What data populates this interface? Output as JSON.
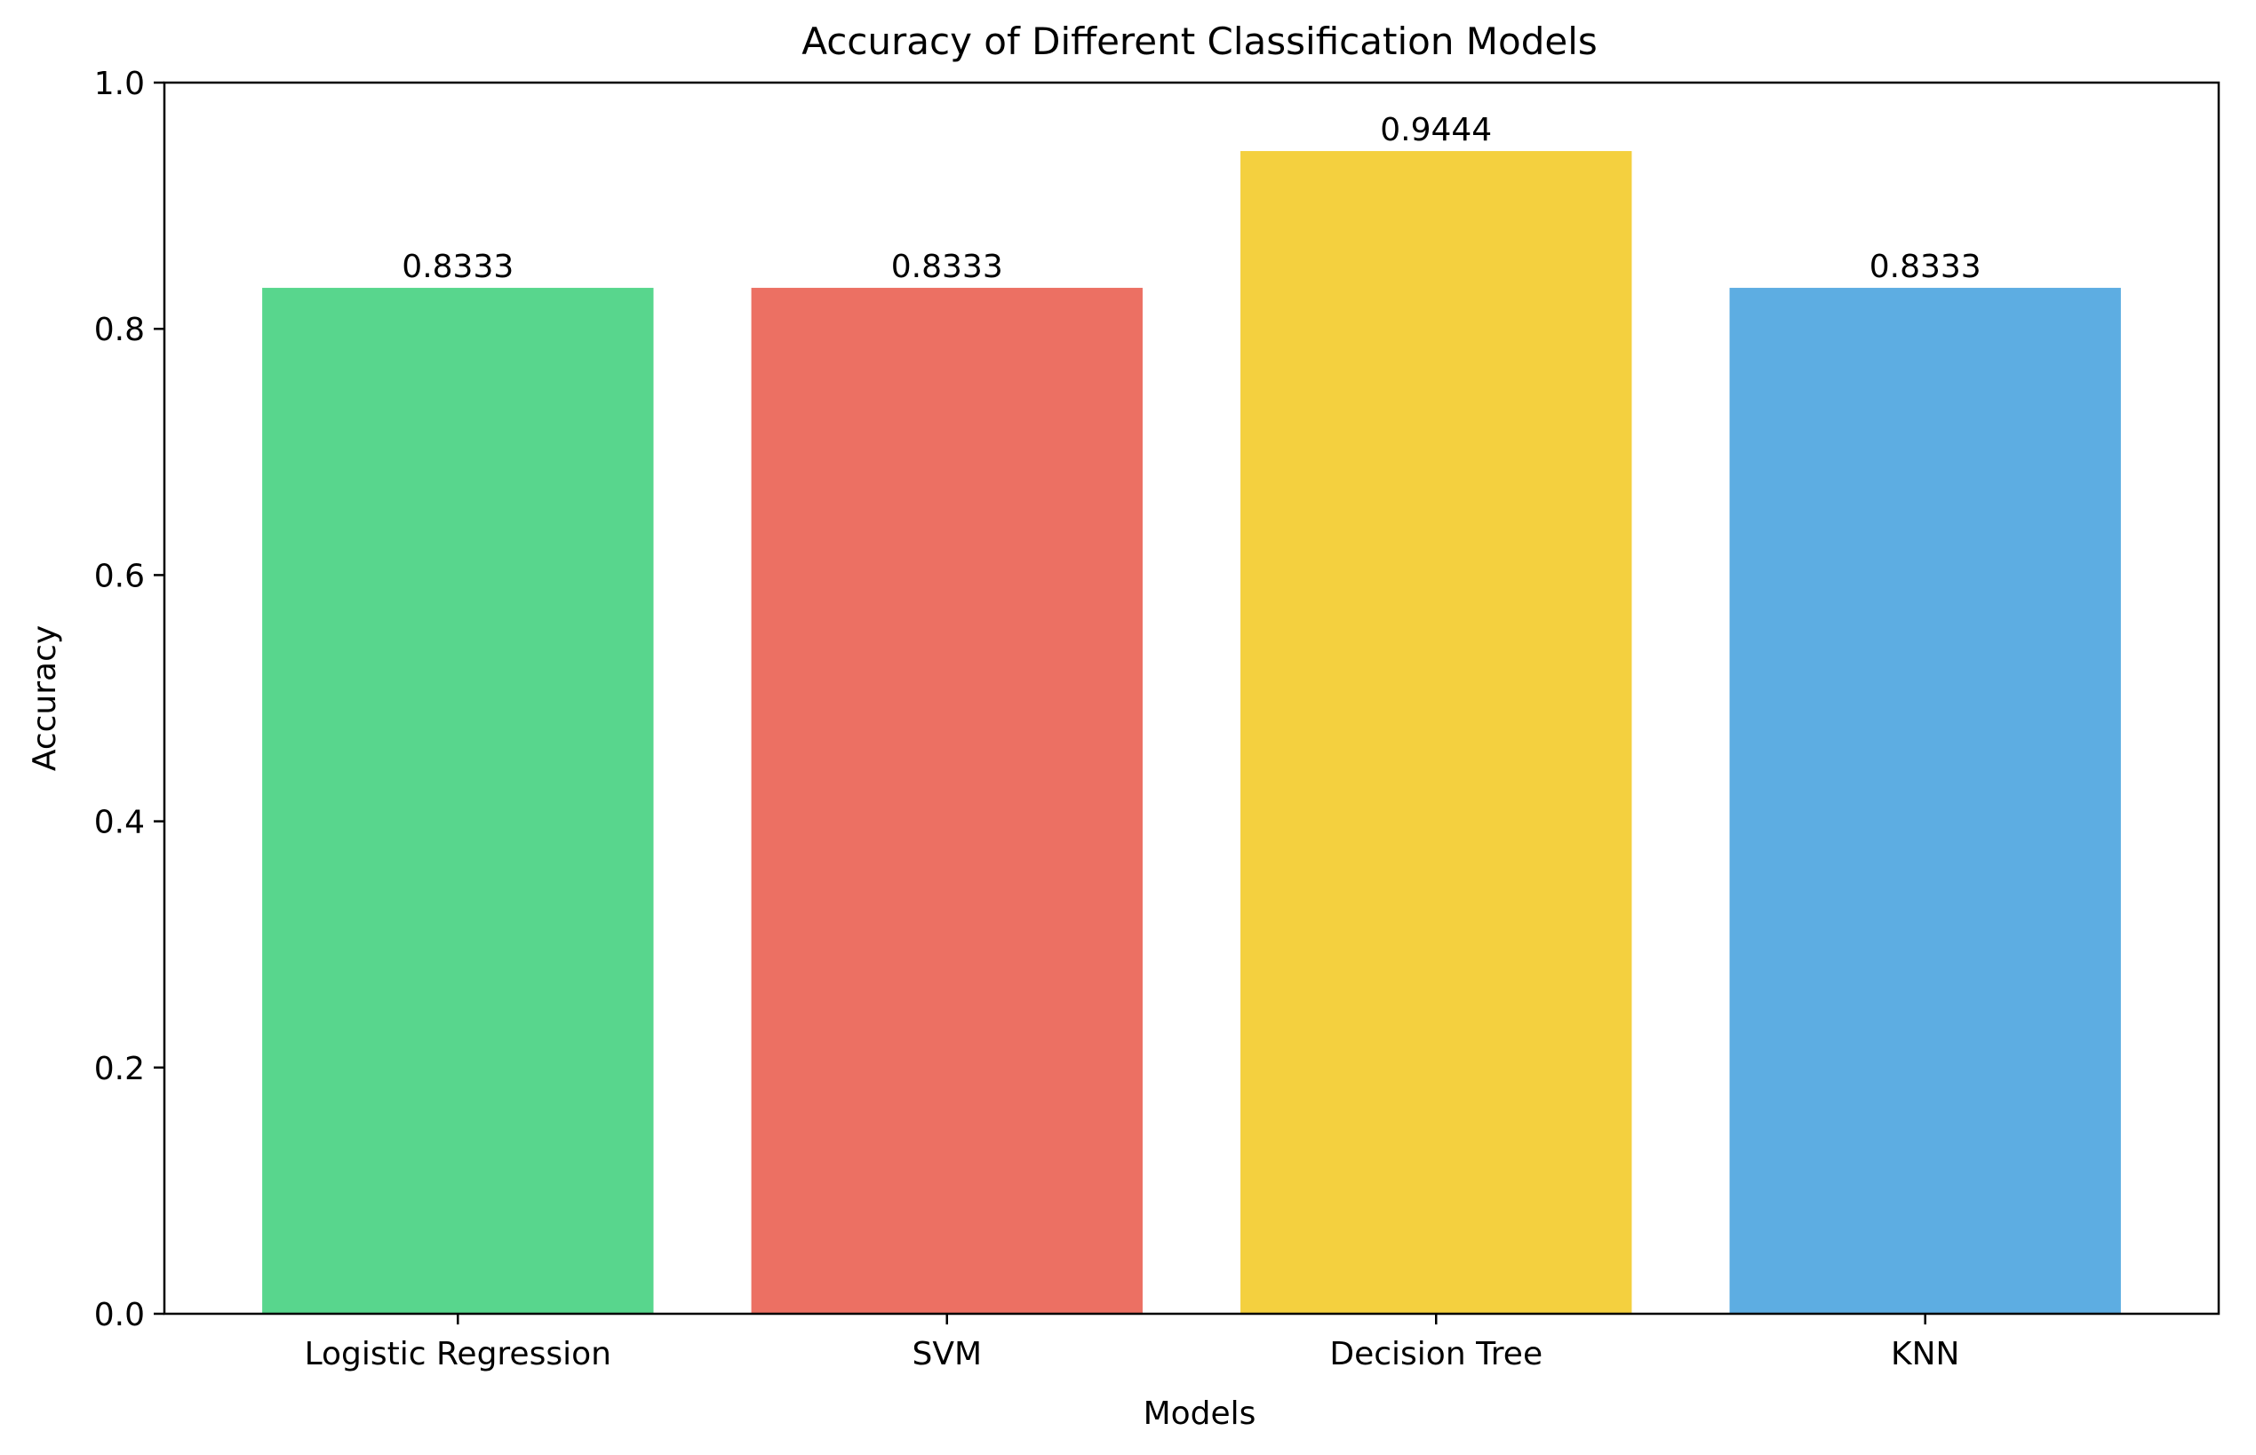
{
  "chart_data": {
    "type": "bar",
    "title": "Accuracy of Different Classification Models",
    "xlabel": "Models",
    "ylabel": "Accuracy",
    "categories": [
      "Logistic Regression",
      "SVM",
      "Decision Tree",
      "KNN"
    ],
    "values": [
      0.8333,
      0.8333,
      0.9444,
      0.8333
    ],
    "data_labels": [
      "0.8333",
      "0.8333",
      "0.9444",
      "0.8333"
    ],
    "colors": [
      "#58d68d",
      "#ec7063",
      "#f4d03f",
      "#5dade2"
    ],
    "ylim": [
      0,
      1
    ],
    "yticks": [
      0.0,
      0.2,
      0.4,
      0.6,
      0.8,
      1.0
    ],
    "ytick_labels": [
      "0.0",
      "0.2",
      "0.4",
      "0.6",
      "0.8",
      "1.0"
    ],
    "grid": false,
    "legend": "none"
  }
}
